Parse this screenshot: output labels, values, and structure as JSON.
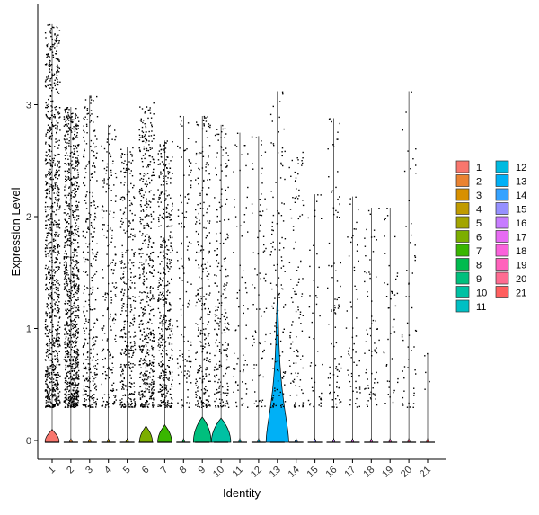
{
  "chart_data": {
    "type": "violin",
    "title": "",
    "xlabel": "Identity",
    "ylabel": "Expression Level",
    "ylim": [
      -0.25,
      3.9
    ],
    "yticks": [
      0,
      1,
      2,
      3
    ],
    "grid": false,
    "legend_position": "right",
    "categories": [
      "1",
      "2",
      "3",
      "4",
      "5",
      "6",
      "7",
      "8",
      "9",
      "10",
      "11",
      "12",
      "13",
      "14",
      "15",
      "16",
      "17",
      "18",
      "19",
      "20",
      "21"
    ],
    "colors": [
      "#F8766D",
      "#EA8331",
      "#D89000",
      "#C09B00",
      "#A3A500",
      "#7CAE00",
      "#39B600",
      "#00BB4E",
      "#00BF7D",
      "#00C1A3",
      "#00BFC4",
      "#00BAE0",
      "#00B0F6",
      "#35A2FF",
      "#9590FF",
      "#C77CFF",
      "#E76BF3",
      "#FA62DB",
      "#FF62BC",
      "#FF6C91",
      "#FF5F5F"
    ],
    "point_counts": [
      950,
      950,
      340,
      200,
      360,
      520,
      440,
      120,
      280,
      220,
      70,
      80,
      130,
      110,
      45,
      90,
      60,
      70,
      45,
      55,
      5
    ],
    "point_max": [
      3.72,
      2.98,
      3.08,
      2.82,
      2.62,
      3.02,
      2.68,
      2.9,
      2.9,
      2.82,
      2.75,
      2.72,
      3.12,
      2.58,
      2.2,
      2.88,
      2.18,
      2.08,
      2.08,
      3.12,
      0.78
    ],
    "violin_width": [
      0.26,
      0.05,
      0.05,
      0.04,
      0.05,
      0.24,
      0.26,
      0.04,
      0.33,
      0.36,
      0.04,
      0.04,
      0.42,
      0.05,
      0.04,
      0.04,
      0.04,
      0.04,
      0.04,
      0.04,
      0.04
    ],
    "violin_height": [
      0.1,
      0.02,
      0.02,
      0.02,
      0.02,
      0.13,
      0.14,
      0.02,
      0.21,
      0.2,
      0.02,
      0.02,
      1.35,
      0.02,
      0.02,
      0.02,
      0.02,
      0.02,
      0.02,
      0.02,
      0.02
    ]
  }
}
